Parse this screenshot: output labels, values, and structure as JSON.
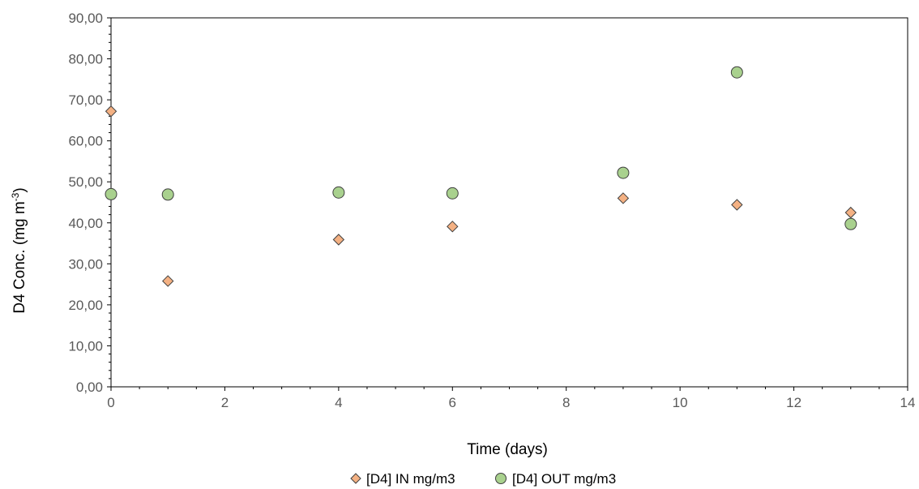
{
  "chart_data": {
    "type": "scatter",
    "title": "",
    "xlabel": "Time (days)",
    "ylabel": "D4 Conc. (mg m",
    "ylabel_sup": "-3",
    "ylabel_tail": ")",
    "xlim": [
      0,
      14
    ],
    "ylim": [
      0,
      90
    ],
    "x_ticks": [
      0,
      2,
      4,
      6,
      8,
      10,
      12,
      14
    ],
    "x_tick_labels": [
      "0",
      "2",
      "4",
      "6",
      "8",
      "10",
      "12",
      "14"
    ],
    "y_ticks": [
      0,
      10,
      20,
      30,
      40,
      50,
      60,
      70,
      80,
      90
    ],
    "y_tick_labels": [
      "0,00",
      "10,00",
      "20,00",
      "30,00",
      "40,00",
      "50,00",
      "60,00",
      "70,00",
      "80,00",
      "90,00"
    ],
    "grid": false,
    "legend_position": "bottom",
    "series": [
      {
        "name": "[D4] IN mg/m3",
        "marker": "diamond",
        "color": "#F4B183",
        "edge_color": "#404040",
        "x": [
          0,
          1,
          4,
          6,
          9,
          11,
          13
        ],
        "y": [
          67.2,
          25.8,
          35.9,
          39.1,
          46.0,
          44.4,
          42.5
        ]
      },
      {
        "name": "[D4] OUT mg/m3",
        "marker": "circle",
        "color": "#A9D18E",
        "edge_color": "#404040",
        "x": [
          0,
          1,
          4,
          6,
          9,
          11,
          13
        ],
        "y": [
          47.0,
          46.9,
          47.4,
          47.2,
          52.2,
          76.7,
          39.7
        ]
      }
    ]
  }
}
